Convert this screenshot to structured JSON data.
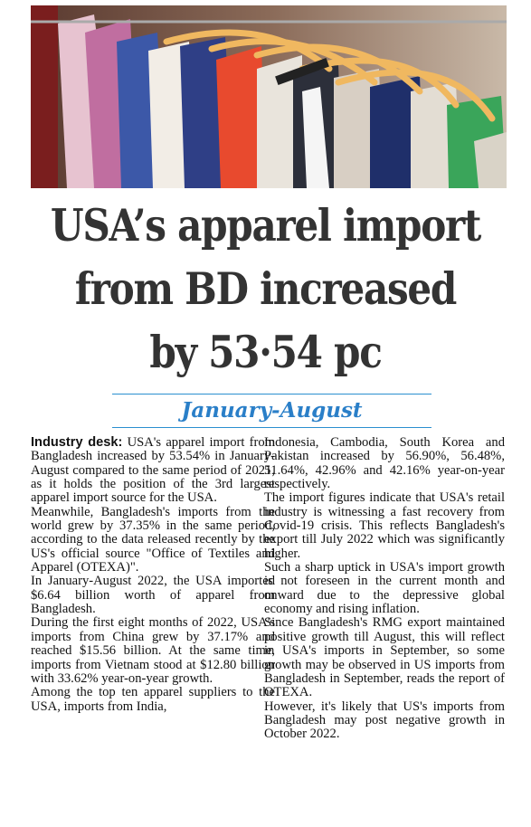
{
  "photo": {
    "alt_icon": "clothes-rack-photo"
  },
  "headline": {
    "line1": "USA’s apparel import",
    "line2": "from BD increased",
    "line3": "by 53·54 pc"
  },
  "subhead": "January-August",
  "article": {
    "lead": "Industry desk:",
    "left_paragraphs": [
      " USA's apparel import from Bangladesh increased by 53.54% in January-August compared to the same period of 2021, as it holds the position of the 3rd largest apparel import source for the USA.",
      "Meanwhile, Bangladesh's imports from the world grew by 37.35% in the same period, according to the data released recently by the US's official source \"Office of Textiles and Apparel (OTEXA)\".",
      "In January-August 2022, the USA imported $6.64 billion worth of apparel from Bangladesh.",
      "During the first eight months of 2022, USA's imports from China grew by 37.17% and reached $15.56 billion. At the same time, imports from Vietnam stood at $12.80 billion with 33.62% year-on-year growth.",
      "Among the top ten apparel suppliers to the USA, imports from India,"
    ],
    "right_paragraphs": [
      "Indonesia, Cambodia, South Korea and Pakistan increased by 56.90%, 56.48%, 51.64%, 42.96% and 42.16% year-on-year respectively.",
      "The import figures indicate that USA's retail industry is witnessing a fast recovery from Covid-19 crisis. This reflects Bangladesh's export till July 2022 which was significantly higher.",
      "Such a sharp uptick in USA's import growth is not foreseen in the current month and onward due to the depressive global economy and rising inflation.",
      "Since Bangladesh's RMG export maintained positive growth till August, this will reflect in USA's imports in September, so some growth may be observed in US imports from Bangladesh in September, reads the report of OTEXA.",
      "However, it's likely that US's imports from Bangladesh may post negative growth in October 2022."
    ]
  }
}
